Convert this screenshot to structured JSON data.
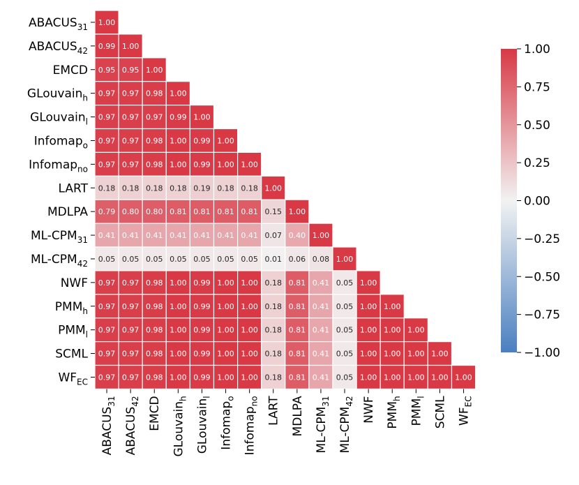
{
  "chart_data": {
    "type": "heatmap",
    "title": "",
    "xlabel": "",
    "ylabel": "",
    "labels": [
      {
        "base": "ABACUS",
        "sub": "31"
      },
      {
        "base": "ABACUS",
        "sub": "42"
      },
      {
        "base": "EMCD",
        "sub": ""
      },
      {
        "base": "GLouvain",
        "sub": "h"
      },
      {
        "base": "GLouvain",
        "sub": "l"
      },
      {
        "base": "Infomap",
        "sub": "o"
      },
      {
        "base": "Infomap",
        "sub": "no"
      },
      {
        "base": "LART",
        "sub": ""
      },
      {
        "base": "MDLPA",
        "sub": ""
      },
      {
        "base": "ML-CPM",
        "sub": "31"
      },
      {
        "base": "ML-CPM",
        "sub": "42"
      },
      {
        "base": "NWF",
        "sub": ""
      },
      {
        "base": "PMM",
        "sub": "h"
      },
      {
        "base": "PMM",
        "sub": "l"
      },
      {
        "base": "SCML",
        "sub": ""
      },
      {
        "base": "WF",
        "sub": "EC"
      }
    ],
    "value_format": "2 decimals",
    "matrix_lower": [
      [
        1.0
      ],
      [
        0.99,
        1.0
      ],
      [
        0.95,
        0.95,
        1.0
      ],
      [
        0.97,
        0.97,
        0.98,
        1.0
      ],
      [
        0.97,
        0.97,
        0.97,
        0.99,
        1.0
      ],
      [
        0.97,
        0.97,
        0.98,
        1.0,
        0.99,
        1.0
      ],
      [
        0.97,
        0.97,
        0.98,
        1.0,
        0.99,
        1.0,
        1.0
      ],
      [
        0.18,
        0.18,
        0.18,
        0.18,
        0.19,
        0.18,
        0.18,
        1.0
      ],
      [
        0.79,
        0.8,
        0.8,
        0.81,
        0.81,
        0.81,
        0.81,
        0.15,
        1.0
      ],
      [
        0.41,
        0.41,
        0.41,
        0.41,
        0.41,
        0.41,
        0.41,
        0.07,
        0.4,
        1.0
      ],
      [
        0.05,
        0.05,
        0.05,
        0.05,
        0.05,
        0.05,
        0.05,
        0.01,
        0.06,
        0.08,
        1.0
      ],
      [
        0.97,
        0.97,
        0.98,
        1.0,
        0.99,
        1.0,
        1.0,
        0.18,
        0.81,
        0.41,
        0.05,
        1.0
      ],
      [
        0.97,
        0.97,
        0.98,
        1.0,
        0.99,
        1.0,
        1.0,
        0.18,
        0.81,
        0.41,
        0.05,
        1.0,
        1.0
      ],
      [
        0.97,
        0.97,
        0.98,
        1.0,
        0.99,
        1.0,
        1.0,
        0.18,
        0.81,
        0.41,
        0.05,
        1.0,
        1.0,
        1.0
      ],
      [
        0.97,
        0.97,
        0.98,
        1.0,
        0.99,
        1.0,
        1.0,
        0.18,
        0.81,
        0.41,
        0.05,
        1.0,
        1.0,
        1.0,
        1.0
      ],
      [
        0.97,
        0.97,
        0.98,
        1.0,
        0.99,
        1.0,
        1.0,
        0.18,
        0.81,
        0.41,
        0.05,
        1.0,
        1.0,
        1.0,
        1.0,
        1.0
      ]
    ],
    "colorbar": {
      "range": [
        -1.0,
        1.0
      ],
      "ticks": [
        1.0,
        0.75,
        0.5,
        0.25,
        0.0,
        -0.25,
        -0.5,
        -0.75,
        -1.0
      ],
      "tick_labels": [
        "1.00",
        "0.75",
        "0.50",
        "0.25",
        "0.00",
        "−0.25",
        "−0.50",
        "−0.75",
        "−1.00"
      ],
      "colormap": {
        "low": "#4a7fc0",
        "mid": "#f2f2f2",
        "high": "#d83945"
      }
    },
    "text_colors": {
      "light": "#ffffff",
      "dark": "#262626"
    }
  }
}
